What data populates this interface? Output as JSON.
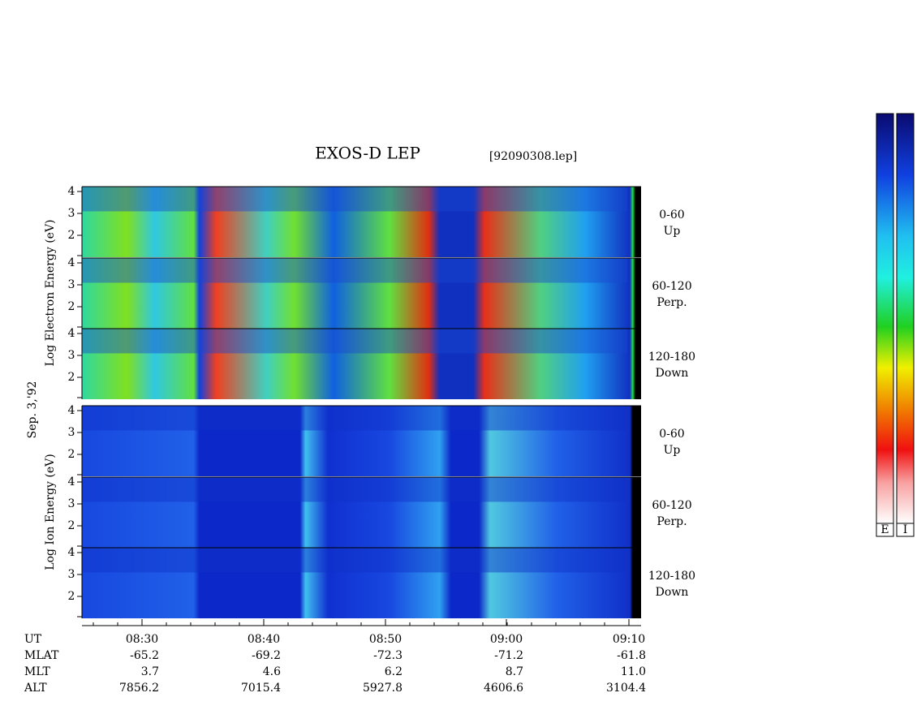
{
  "title": "EXOS-D LEP",
  "file": "[92090308.lep]",
  "date": "Sep. 3,'92",
  "panels": [
    {
      "ylabel": "Log Electron Energy (eV)",
      "subpanels": [
        {
          "yticks": [
            2,
            3,
            4
          ],
          "label": "0-60",
          "direction": "Up"
        },
        {
          "yticks": [
            2,
            3,
            4
          ],
          "label": "60-120",
          "direction": "Perp."
        },
        {
          "yticks": [
            2,
            3,
            4
          ],
          "label": "120-180",
          "direction": "Down"
        }
      ]
    },
    {
      "ylabel": "Log Ion Energy (eV)",
      "subpanels": [
        {
          "yticks": [
            2,
            3,
            4
          ],
          "label": "0-60",
          "direction": "Up"
        },
        {
          "yticks": [
            2,
            3,
            4
          ],
          "label": "60-120",
          "direction": "Perp."
        },
        {
          "yticks": [
            2,
            3,
            4
          ],
          "label": "120-180",
          "direction": "Down"
        }
      ]
    }
  ],
  "rows": [
    {
      "label": "UT",
      "values": [
        "08:30",
        "08:40",
        "08:50",
        "09:00",
        "09:10"
      ]
    },
    {
      "label": "MLAT",
      "values": [
        "-65.2",
        "-69.2",
        "-72.3",
        "-71.2",
        "-61.8"
      ]
    },
    {
      "label": "MLT",
      "values": [
        "3.7",
        "4.6",
        "6.2",
        "8.7",
        "11.0"
      ]
    },
    {
      "label": "ALT",
      "values": [
        "7856.2",
        "7015.4",
        "5927.8",
        "4606.6",
        "3104.4"
      ]
    }
  ],
  "colorbars": [
    "E",
    "I"
  ]
}
